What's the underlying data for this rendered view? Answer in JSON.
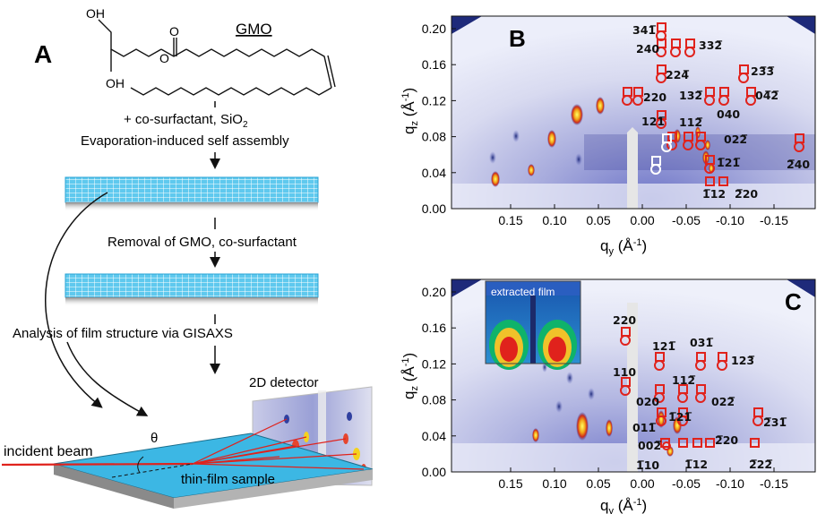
{
  "panel_a": {
    "label": "A",
    "molecule_name": "GMO",
    "oh_top": "OH",
    "oh_bottom": "OH",
    "oxygen": "O",
    "ester_o": "O",
    "step1_line1": "+ co-surfactant, SiO",
    "step1_sub": "2",
    "step1_line2": "Evaporation-induced self assembly",
    "step2": "Removal of GMO, co-surfactant",
    "step3": "Analysis of film structure via GISAXS",
    "detector": "2D detector",
    "beam": "incident beam",
    "angle": "θ",
    "sample": "thin-film sample"
  },
  "panel_b": {
    "label": "B",
    "y_ticks": [
      "0.20",
      "0.16",
      "0.12",
      "0.08",
      "0.04",
      "0.00"
    ],
    "x_ticks": [
      "0.15",
      "0.10",
      "0.05",
      "0.00",
      "-0.05",
      "-0.10",
      "-0.15"
    ],
    "ylabel_q": "q",
    "ylabel_sub": "z",
    "ylabel_unit": " (Å",
    "ylabel_sup": "-1",
    "ylabel_close": ")",
    "xlabel_q": "q",
    "xlabel_sub": "y",
    "xlabel_unit": " (Å",
    "xlabel_sup": "-1",
    "xlabel_close": ")",
    "indices": [
      {
        "text": "341̅",
        "key": "b1"
      },
      {
        "text": "240",
        "key": "b2"
      },
      {
        "text": "332̅",
        "key": "b3"
      },
      {
        "text": "224̅",
        "key": "b4"
      },
      {
        "text": "23̅3̅",
        "key": "b5"
      },
      {
        "text": "220",
        "key": "b6"
      },
      {
        "text": "132̅",
        "key": "b7"
      },
      {
        "text": "04̅2̅",
        "key": "b8"
      },
      {
        "text": "040",
        "key": "b9"
      },
      {
        "text": "121̅",
        "key": "b10"
      },
      {
        "text": "112̅",
        "key": "b11"
      },
      {
        "text": "022̅",
        "key": "b12"
      },
      {
        "text": "2̅40",
        "key": "b13"
      },
      {
        "text": "1̅21̅",
        "key": "b14"
      },
      {
        "text": "1̅12",
        "key": "b15"
      },
      {
        "text": "2̅20",
        "key": "b16"
      }
    ]
  },
  "panel_c": {
    "label": "C",
    "inset": "extracted film",
    "y_ticks": [
      "0.20",
      "0.16",
      "0.12",
      "0.08",
      "0.04",
      "0.00"
    ],
    "x_ticks": [
      "0.15",
      "0.10",
      "0.05",
      "0.00",
      "-0.05",
      "-0.10",
      "-0.15"
    ],
    "ylabel_q": "q",
    "ylabel_sub": "z",
    "ylabel_unit": " (Å",
    "ylabel_sup": "-1",
    "ylabel_close": ")",
    "xlabel_q": "q",
    "xlabel_sub": "y",
    "xlabel_unit": " (Å",
    "xlabel_sup": "-1",
    "xlabel_close": ")",
    "indices": [
      {
        "text": "220",
        "key": "c1"
      },
      {
        "text": "121̅",
        "key": "c2"
      },
      {
        "text": "031̅",
        "key": "c3"
      },
      {
        "text": "123̅",
        "key": "c4"
      },
      {
        "text": "110",
        "key": "c5"
      },
      {
        "text": "112̅",
        "key": "c6"
      },
      {
        "text": "020",
        "key": "c7"
      },
      {
        "text": "022̅",
        "key": "c8"
      },
      {
        "text": "011̅",
        "key": "c9"
      },
      {
        "text": "1̅21̅",
        "key": "c10"
      },
      {
        "text": "2̅31̅",
        "key": "c11"
      },
      {
        "text": "002̅",
        "key": "c12"
      },
      {
        "text": "2̅20",
        "key": "c13"
      },
      {
        "text": "1̅10",
        "key": "c14"
      },
      {
        "text": "1̅12",
        "key": "c15"
      },
      {
        "text": "2̅22̅",
        "key": "c16"
      }
    ]
  },
  "colors": {
    "background": "#ffffff",
    "detector_blue": "#2a2f8f",
    "marker_red": "#e0221c",
    "marker_white": "#ffffff",
    "film_cyan": "#39b6e3",
    "beam_red": "#e0221c"
  }
}
